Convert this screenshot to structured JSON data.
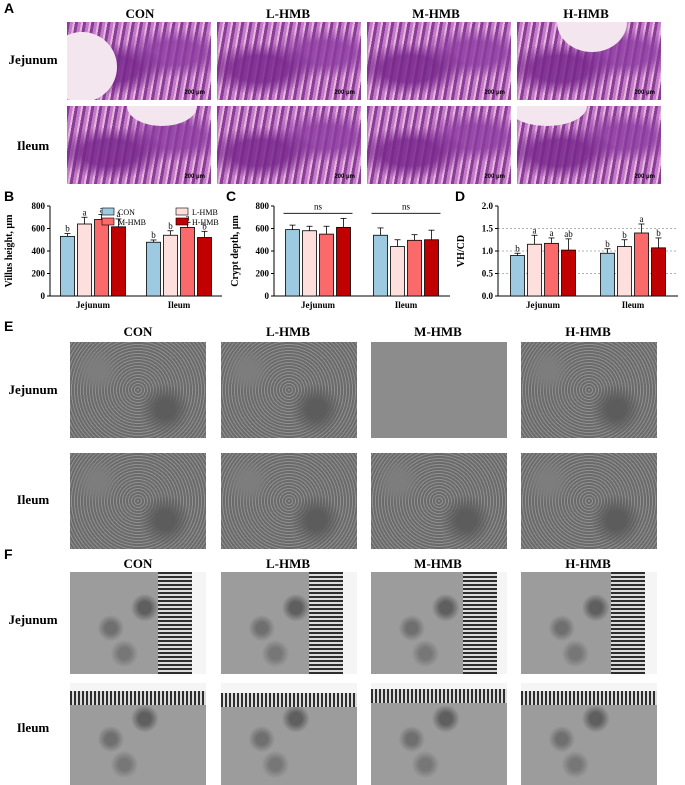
{
  "panels": {
    "A": "A",
    "B": "B",
    "C": "C",
    "D": "D",
    "E": "E",
    "F": "F"
  },
  "groups": [
    "CON",
    "L-HMB",
    "M-HMB",
    "H-HMB"
  ],
  "rows": [
    "Jejunum",
    "Ileum"
  ],
  "scale_text": "200 μm",
  "colors": {
    "CON": "#9ecae1",
    "L-HMB": "#fde0dd",
    "M-HMB": "#fb6a6a",
    "H-HMB": "#c00000"
  },
  "chart_data": [
    {
      "type": "bar",
      "panel": "B",
      "ylabel": "Villus height, μm",
      "ylim": [
        0,
        800
      ],
      "yticks": [
        "0",
        "200",
        "400",
        "600",
        "800"
      ],
      "categories": [
        "Jejunum",
        "Ileum"
      ],
      "series": [
        {
          "name": "CON",
          "values": [
            530,
            478
          ],
          "errors": [
            25,
            20
          ],
          "letters": [
            "b",
            "b"
          ]
        },
        {
          "name": "L-HMB",
          "values": [
            640,
            540
          ],
          "errors": [
            60,
            40
          ],
          "letters": [
            "a",
            "b"
          ]
        },
        {
          "name": "M-HMB",
          "values": [
            680,
            610
          ],
          "errors": [
            45,
            45
          ],
          "letters": [
            "a",
            "a"
          ]
        },
        {
          "name": "H-HMB",
          "values": [
            615,
            520
          ],
          "errors": [
            70,
            55
          ],
          "letters": [
            "a",
            "b"
          ]
        }
      ],
      "legend": "top"
    },
    {
      "type": "bar",
      "panel": "C",
      "ylabel": "Crypt depth, μm",
      "ylim": [
        0,
        800
      ],
      "yticks": [
        "0",
        "200",
        "400",
        "600",
        "800"
      ],
      "categories": [
        "Jejunum",
        "Ileum"
      ],
      "series": [
        {
          "name": "CON",
          "values": [
            590,
            540
          ],
          "errors": [
            40,
            65
          ],
          "letters": [
            "",
            ""
          ]
        },
        {
          "name": "L-HMB",
          "values": [
            580,
            440
          ],
          "errors": [
            40,
            60
          ],
          "letters": [
            "",
            ""
          ]
        },
        {
          "name": "M-HMB",
          "values": [
            550,
            495
          ],
          "errors": [
            70,
            50
          ],
          "letters": [
            "",
            ""
          ]
        },
        {
          "name": "H-HMB",
          "values": [
            610,
            500
          ],
          "errors": [
            80,
            85
          ],
          "letters": [
            "",
            ""
          ]
        }
      ],
      "significance": [
        "ns",
        "ns"
      ]
    },
    {
      "type": "bar",
      "panel": "D",
      "ylabel": "VH/CD",
      "ylim": [
        0,
        2.0
      ],
      "yticks": [
        "0.0",
        "0.5",
        "1.0",
        "1.5",
        "2.0"
      ],
      "categories": [
        "Jejunum",
        "Ileum"
      ],
      "series": [
        {
          "name": "CON",
          "values": [
            0.9,
            0.95
          ],
          "errors": [
            0.05,
            0.1
          ],
          "letters": [
            "b",
            "b"
          ]
        },
        {
          "name": "L-HMB",
          "values": [
            1.15,
            1.1
          ],
          "errors": [
            0.2,
            0.15
          ],
          "letters": [
            "a",
            "b"
          ]
        },
        {
          "name": "M-HMB",
          "values": [
            1.17,
            1.4
          ],
          "errors": [
            0.12,
            0.2
          ],
          "letters": [
            "a",
            "a"
          ]
        },
        {
          "name": "H-HMB",
          "values": [
            1.02,
            1.07
          ],
          "errors": [
            0.25,
            0.22
          ],
          "letters": [
            "ab",
            "b"
          ]
        }
      ],
      "grid": "dotted at 0.5, 1.0, 1.5"
    }
  ]
}
